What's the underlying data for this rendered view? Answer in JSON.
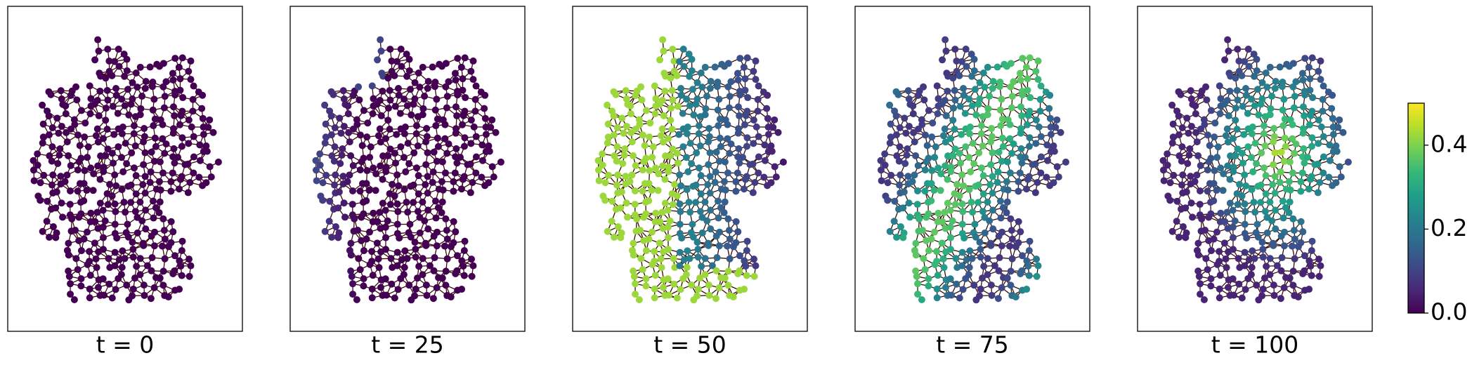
{
  "chart_data": [
    {
      "type": "network",
      "xlabel": "t = 0"
    },
    {
      "type": "network",
      "xlabel": "t = 25"
    },
    {
      "type": "network",
      "xlabel": "t = 50"
    },
    {
      "type": "network",
      "xlabel": "t = 75"
    },
    {
      "type": "network",
      "xlabel": "t = 100"
    },
    {
      "type": "colorbar",
      "colormap": "viridis",
      "ylim": [
        0,
        0.5
      ],
      "yticks": [
        {
          "value": 0,
          "label": "0.0"
        },
        {
          "value": 0.2,
          "label": "0.2"
        },
        {
          "value": 0.4,
          "label": "0.4"
        }
      ]
    }
  ]
}
